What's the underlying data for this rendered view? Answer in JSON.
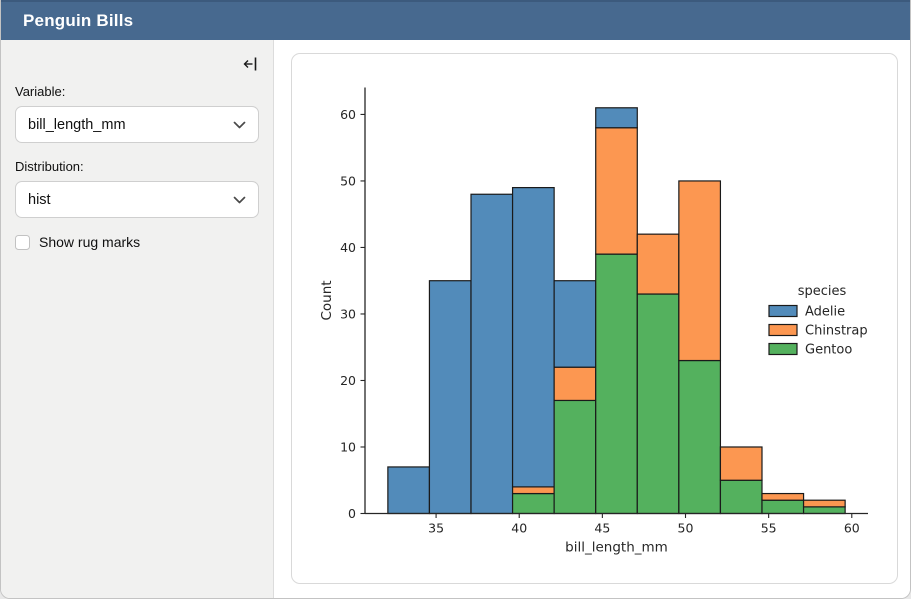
{
  "header": {
    "title": "Penguin Bills"
  },
  "colors": {
    "header_bg": "#47698F",
    "sidebar_bg": "#F1F1F0",
    "card_border": "#D9D9D9"
  },
  "sidebar": {
    "collapse_icon": "collapse-sidebar-left",
    "variable_label": "Variable:",
    "variable_value": "bill_length_mm",
    "distribution_label": "Distribution:",
    "distribution_value": "hist",
    "rug_label": "Show rug marks",
    "rug_checked": false
  },
  "chart_data": {
    "type": "bar",
    "subtype": "stacked-histogram",
    "title": "",
    "xlabel": "bill_length_mm",
    "ylabel": "Count",
    "bin_edges": [
      32.1,
      34.6,
      37.1,
      39.6,
      42.1,
      44.6,
      47.1,
      49.6,
      52.1,
      54.6,
      57.1,
      59.6
    ],
    "x_ticks": [
      35,
      40,
      45,
      50,
      55,
      60
    ],
    "y_ticks": [
      0,
      10,
      20,
      30,
      40,
      50,
      60
    ],
    "xlim": [
      30.725,
      60.975
    ],
    "ylim": [
      0,
      64.05
    ],
    "grid": false,
    "legend_title": "species",
    "legend_position": "right-inside",
    "edge_color": "#1A1A1A",
    "axis_color": "#262626",
    "text_color": "#262626",
    "series": [
      {
        "name": "Adelie",
        "color": "#528BBA",
        "values": [
          7,
          35,
          48,
          45,
          13,
          3,
          0,
          0,
          0,
          0,
          0
        ]
      },
      {
        "name": "Chinstrap",
        "color": "#FC9751",
        "values": [
          0,
          0,
          0,
          1,
          5,
          19,
          9,
          27,
          5,
          1,
          1
        ]
      },
      {
        "name": "Gentoo",
        "color": "#54B15E",
        "values": [
          0,
          0,
          0,
          3,
          17,
          39,
          33,
          23,
          5,
          2,
          1
        ]
      }
    ],
    "stack_order_bottom_to_top": [
      "Gentoo",
      "Chinstrap",
      "Adelie"
    ],
    "bin_totals": [
      7,
      35,
      48,
      49,
      35,
      61,
      42,
      50,
      10,
      3,
      2
    ]
  }
}
